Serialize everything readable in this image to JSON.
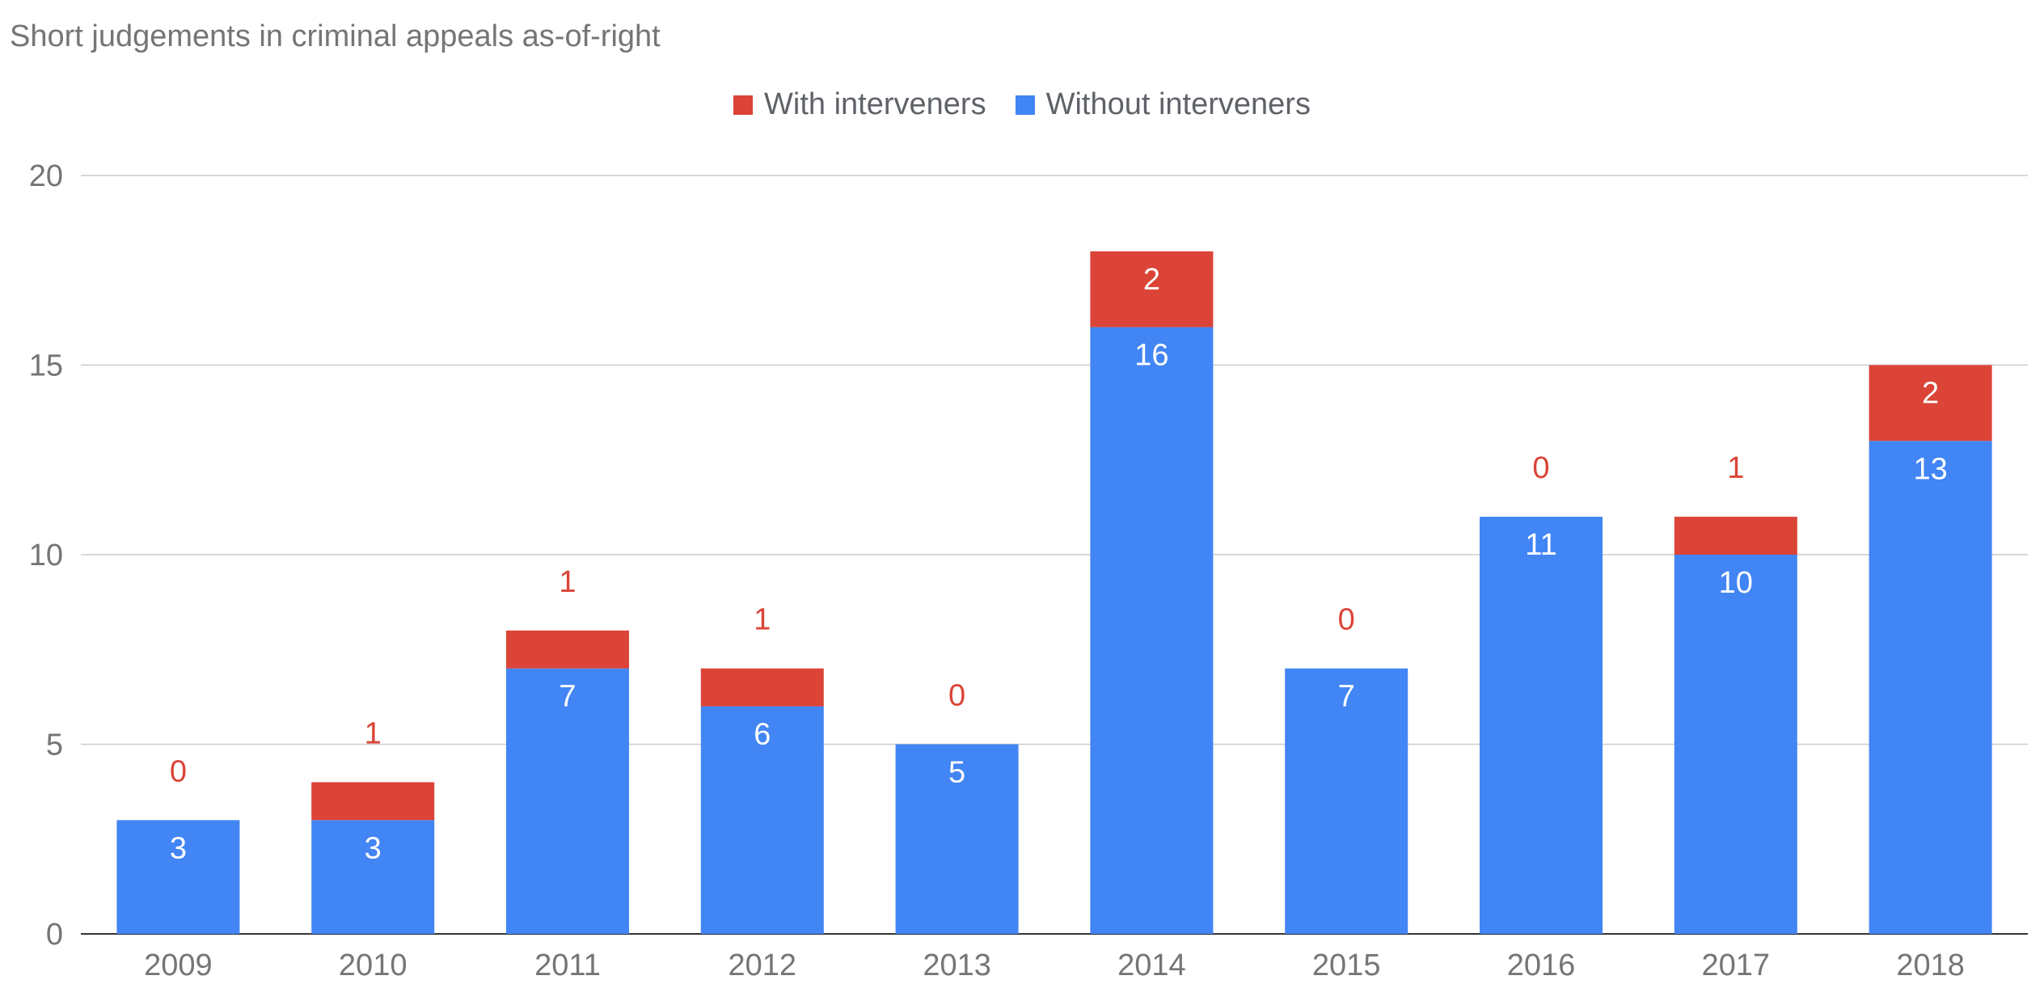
{
  "chart_data": {
    "type": "bar",
    "stacked": true,
    "title": "Short judgements in criminal appeals as-of-right",
    "categories": [
      "2009",
      "2010",
      "2011",
      "2012",
      "2013",
      "2014",
      "2015",
      "2016",
      "2017",
      "2018"
    ],
    "series": [
      {
        "name": "Without interveners",
        "color": "#4285f4",
        "values": [
          3,
          3,
          7,
          6,
          5,
          16,
          7,
          11,
          10,
          13
        ]
      },
      {
        "name": "With interveners",
        "color": "#db4437",
        "values": [
          0,
          1,
          1,
          1,
          0,
          2,
          0,
          0,
          1,
          2
        ]
      }
    ],
    "legend_order": [
      "With interveners",
      "Without interveners"
    ],
    "legend_position": "top",
    "ylim": [
      0,
      20
    ],
    "yticks": [
      0,
      5,
      10,
      15,
      20
    ],
    "grid": true
  }
}
